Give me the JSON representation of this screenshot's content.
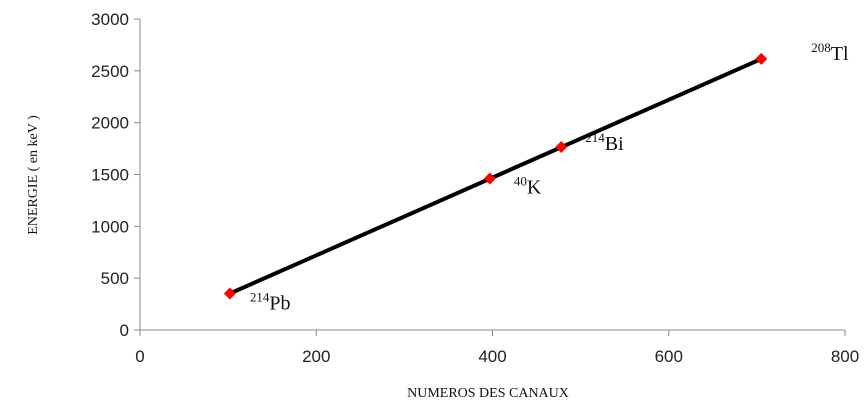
{
  "chart_data": {
    "type": "scatter",
    "xlabel": "NUMEROS DES CANAUX",
    "ylabel": "ENERGIE  ( en keV )",
    "xlim": [
      0,
      800
    ],
    "ylim": [
      0,
      3000
    ],
    "xticks": [
      0,
      200,
      400,
      600,
      800
    ],
    "yticks": [
      0,
      500,
      1000,
      1500,
      2000,
      2500,
      3000
    ],
    "grid": false,
    "trendline": true,
    "colors": {
      "marker": "#ff0000",
      "line": "#000000"
    },
    "points": [
      {
        "x": 102,
        "y": 352,
        "isotope_mass": "214",
        "isotope_symbol": "Pb"
      },
      {
        "x": 397,
        "y": 1461,
        "isotope_mass": "40",
        "isotope_symbol": "K"
      },
      {
        "x": 478,
        "y": 1765,
        "isotope_mass": "214",
        "isotope_symbol": "Bi"
      },
      {
        "x": 705,
        "y": 2615,
        "isotope_mass": "208",
        "isotope_symbol": "Tl"
      }
    ]
  }
}
